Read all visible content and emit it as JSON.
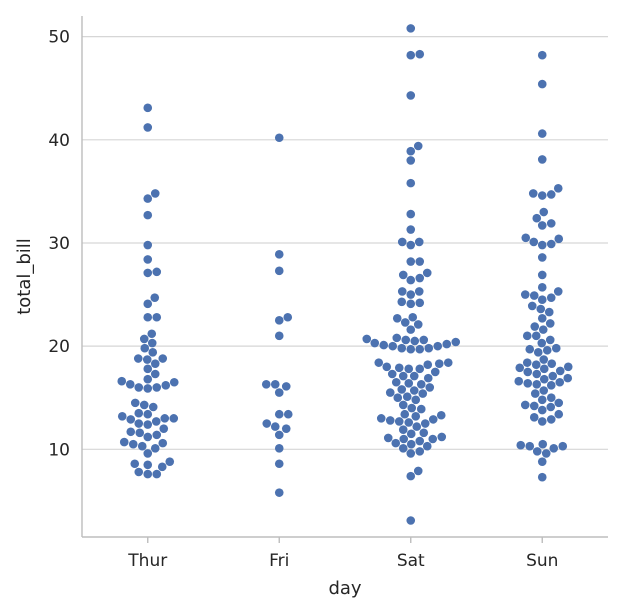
{
  "chart_data": {
    "type": "scatter",
    "subtype": "swarm",
    "xlabel": "day",
    "ylabel": "total_bill",
    "categories": [
      "Thur",
      "Fri",
      "Sat",
      "Sun"
    ],
    "ylim": [
      1.5,
      52
    ],
    "yticks": [
      10,
      20,
      30,
      40,
      50
    ],
    "grid": "horizontal",
    "legend": "none",
    "point_color": "#4c72b0",
    "series": [
      {
        "category": "Thur",
        "values": [
          43.1,
          41.2,
          34.8,
          34.3,
          32.7,
          29.8,
          28.4,
          27.2,
          27.1,
          24.7,
          24.1,
          22.8,
          22.8,
          21.2,
          20.7,
          20.3,
          19.8,
          19.4,
          18.8,
          18.8,
          18.7,
          18.3,
          17.8,
          17.3,
          16.8,
          16.6,
          16.5,
          16.3,
          16.2,
          16.0,
          16.0,
          15.9,
          14.5,
          14.3,
          14.1,
          13.5,
          13.4,
          13.2,
          13.0,
          13.0,
          12.9,
          12.7,
          12.5,
          12.4,
          12.0,
          11.7,
          11.6,
          11.4,
          11.2,
          10.7,
          10.6,
          10.5,
          10.3,
          10.1,
          9.6,
          8.8,
          8.6,
          8.5,
          8.3,
          7.8,
          7.6,
          7.6
        ]
      },
      {
        "category": "Fri",
        "values": [
          40.2,
          28.9,
          27.3,
          22.8,
          22.5,
          21.0,
          16.3,
          16.3,
          16.1,
          15.5,
          13.4,
          13.4,
          12.5,
          12.2,
          12.0,
          11.4,
          10.1,
          8.6,
          5.8
        ]
      },
      {
        "category": "Sat",
        "values": [
          50.8,
          48.3,
          48.2,
          44.3,
          39.4,
          38.9,
          38.0,
          35.8,
          32.8,
          31.3,
          30.1,
          30.1,
          29.8,
          28.2,
          28.2,
          27.1,
          26.9,
          26.6,
          26.4,
          25.3,
          25.3,
          25.0,
          24.3,
          24.2,
          24.1,
          22.8,
          22.7,
          22.3,
          22.1,
          21.6,
          20.8,
          20.7,
          20.6,
          20.6,
          20.5,
          20.4,
          20.3,
          20.2,
          20.1,
          20.0,
          20.0,
          19.8,
          19.8,
          19.7,
          19.7,
          18.4,
          18.4,
          18.3,
          18.2,
          18.0,
          17.9,
          17.8,
          17.8,
          17.5,
          17.3,
          17.1,
          17.1,
          16.9,
          16.5,
          16.4,
          16.3,
          16.0,
          15.8,
          15.7,
          15.5,
          15.4,
          15.1,
          15.0,
          14.8,
          14.3,
          14.0,
          13.9,
          13.4,
          13.3,
          13.2,
          13.0,
          12.9,
          12.8,
          12.7,
          12.6,
          12.5,
          12.2,
          11.9,
          11.6,
          11.5,
          11.2,
          11.1,
          11.0,
          11.0,
          10.8,
          10.6,
          10.5,
          10.3,
          10.1,
          9.8,
          9.6,
          7.9,
          7.4,
          3.1
        ]
      },
      {
        "category": "Sun",
        "values": [
          48.2,
          45.4,
          40.6,
          38.1,
          35.3,
          34.8,
          34.7,
          34.6,
          33.0,
          32.4,
          31.9,
          31.7,
          30.5,
          30.4,
          30.1,
          29.9,
          29.8,
          28.6,
          26.9,
          25.7,
          25.3,
          25.0,
          24.9,
          24.7,
          24.5,
          23.9,
          23.6,
          23.3,
          22.7,
          22.2,
          21.9,
          21.6,
          21.0,
          21.0,
          20.6,
          20.3,
          19.8,
          19.7,
          19.6,
          19.4,
          18.7,
          18.4,
          18.3,
          18.2,
          18.0,
          17.9,
          17.8,
          17.6,
          17.5,
          17.3,
          17.1,
          16.9,
          16.8,
          16.6,
          16.5,
          16.4,
          16.3,
          16.2,
          15.7,
          15.4,
          15.0,
          14.8,
          14.5,
          14.3,
          14.2,
          14.1,
          13.8,
          13.4,
          13.1,
          12.9,
          12.7,
          10.5,
          10.4,
          10.3,
          10.3,
          10.1,
          9.8,
          9.6,
          8.8,
          7.3
        ]
      }
    ]
  }
}
